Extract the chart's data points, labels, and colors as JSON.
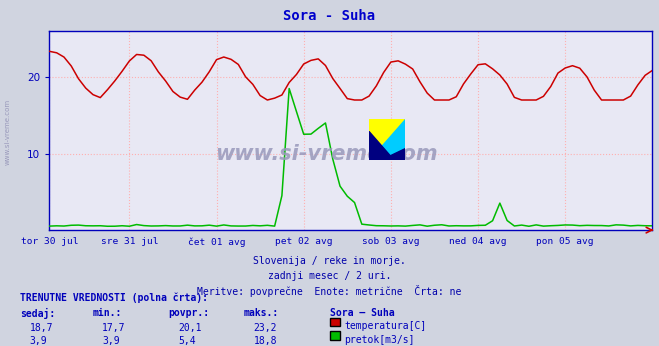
{
  "title": "Sora - Suha",
  "title_color": "#0000cc",
  "bg_color": "#d0d4e0",
  "plot_bg_color": "#e8e8f4",
  "grid_color": "#ffb0b0",
  "axis_color": "#0000bb",
  "x_labels": [
    "tor 30 jul",
    "sre 31 jul",
    "čet 01 avg",
    "pet 02 avg",
    "sob 03 avg",
    "ned 04 avg",
    "pon 05 avg"
  ],
  "y_ticks": [
    10,
    20
  ],
  "y_max": 26,
  "y_min": 0,
  "temp_color": "#cc0000",
  "flow_color": "#00bb00",
  "watermark_text": "www.si-vreme.com",
  "watermark_color": "#9999bb",
  "subtitle_lines": [
    "Slovenija / reke in morje.",
    "zadnji mesec / 2 uri.",
    "Meritve: povprečne  Enote: metrične  Črta: ne"
  ],
  "subtitle_color": "#0000aa",
  "table_header": "TRENUTNE VREDNOSTI (polna črta):",
  "col_headers": [
    "sedaj:",
    "min.:",
    "povpr.:",
    "maks.:",
    "Sora – Suha"
  ],
  "row1": [
    "18,7",
    "17,7",
    "20,1",
    "23,2"
  ],
  "row2": [
    "3,9",
    "3,9",
    "5,4",
    "18,8"
  ],
  "legend1": "temperatura[C]",
  "legend2": "pretok[m3/s]",
  "n_points": 84,
  "x_ticks_frac": [
    0.0,
    0.143,
    0.286,
    0.429,
    0.571,
    0.714,
    0.857
  ]
}
